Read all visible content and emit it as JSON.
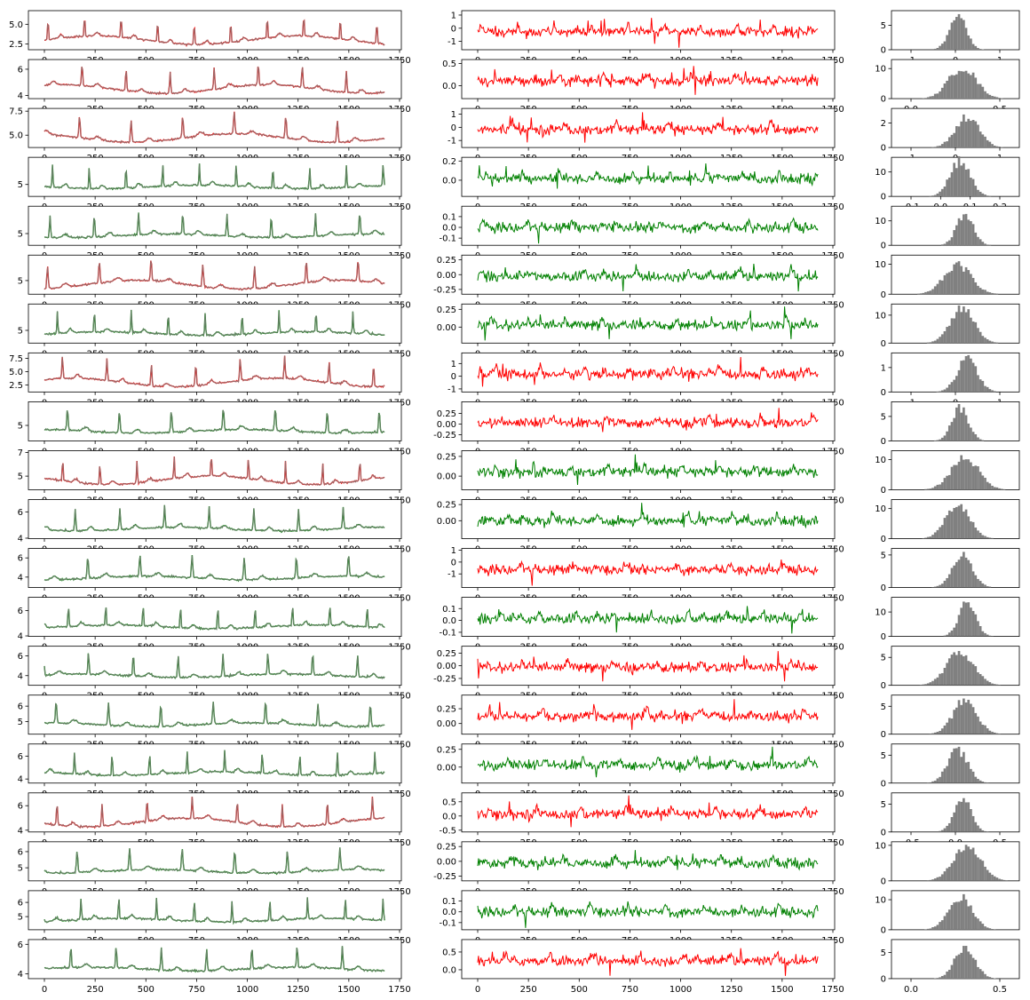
{
  "chart_data": {
    "type": "grid-of-plots",
    "rows": 20,
    "columns": [
      "signal_with_reconstruction",
      "residual",
      "residual_histogram"
    ],
    "colors": {
      "red": "#ff0000",
      "green": "#008000",
      "overlay": "#808080",
      "hist": "#808080"
    },
    "x_range_signal": [
      0,
      1680
    ],
    "x_ticks_signal": [
      0,
      250,
      500,
      750,
      1000,
      1250,
      1500,
      1750
    ],
    "x_tick_labels_signal": [
      "0",
      "250",
      "500",
      "750",
      "1000",
      "1250",
      "1500",
      "1750"
    ],
    "row_status": [
      "red",
      "red",
      "red",
      "green",
      "green",
      "red",
      "green",
      "red",
      "green",
      "red",
      "green",
      "green",
      "green",
      "green",
      "green",
      "green",
      "red",
      "green",
      "green",
      "green"
    ],
    "residual_color": [
      "red",
      "red",
      "red",
      "green",
      "green",
      "green",
      "green",
      "red",
      "red",
      "green",
      "green",
      "red",
      "green",
      "red",
      "red",
      "green",
      "red",
      "green",
      "green",
      "red"
    ],
    "signal_yticks": [
      [
        "2.5",
        "5.0"
      ],
      [
        "4",
        "6"
      ],
      [
        "5.0",
        "7.5"
      ],
      [
        "5"
      ],
      [
        "5"
      ],
      [
        "5"
      ],
      [
        "5"
      ],
      [
        "2.5",
        "5.0",
        "7.5"
      ],
      [
        "5"
      ],
      [
        "5",
        "7"
      ],
      [
        "4",
        "6"
      ],
      [
        "4",
        "6"
      ],
      [
        "4",
        "6"
      ],
      [
        "4",
        "6"
      ],
      [
        "5",
        "6"
      ],
      [
        "4",
        "6"
      ],
      [
        "4",
        "6"
      ],
      [
        "5",
        "6"
      ],
      [
        "5",
        "6"
      ],
      [
        "4",
        "6"
      ]
    ],
    "signal_ylims": [
      [
        2,
        6.5
      ],
      [
        3.9,
        6.6
      ],
      [
        3.9,
        7.6
      ],
      [
        4.2,
        7
      ],
      [
        4.3,
        6.8
      ],
      [
        4.2,
        6.6
      ],
      [
        4.2,
        6.8
      ],
      [
        1.5,
        8.2
      ],
      [
        4,
        6.6
      ],
      [
        4,
        7
      ],
      [
        4.1,
        6.8
      ],
      [
        3.1,
        6.8
      ],
      [
        4.1,
        6.9
      ],
      [
        3.2,
        6.8
      ],
      [
        4.3,
        6.6
      ],
      [
        3.8,
        6.9
      ],
      [
        4,
        6.9
      ],
      [
        4.3,
        6.5
      ],
      [
        4.2,
        6.7
      ],
      [
        3.8,
        6.2
      ]
    ],
    "residual_yticks": [
      [
        "-1",
        "0",
        "1"
      ],
      [
        "0.0",
        "0.5"
      ],
      [
        "-1",
        "0",
        "1"
      ],
      [
        "0.0",
        "0.2"
      ],
      [
        "-0.1",
        "0.0",
        "0.1"
      ],
      [
        "-0.25",
        "0.00",
        "0.25"
      ],
      [
        "0.00",
        "0.25"
      ],
      [
        "-1",
        "0",
        "1"
      ],
      [
        "-0.25",
        "0.00",
        "0.25"
      ],
      [
        "0.00",
        "0.25"
      ],
      [
        "0.00",
        "0.25"
      ],
      [
        "-1",
        "0",
        "1"
      ],
      [
        "-0.1",
        "0.0",
        "0.1"
      ],
      [
        "-0.25",
        "0.00",
        "0.25"
      ],
      [
        "0.00",
        "0.25"
      ],
      [
        "0.00",
        "0.25"
      ],
      [
        "-0.5",
        "0.0",
        "0.5"
      ],
      [
        "-0.25",
        "0.00",
        "0.25"
      ],
      [
        "-0.1",
        "0.0",
        "0.1"
      ],
      [
        "0.0",
        "0.5"
      ]
    ],
    "residual_ylims": [
      [
        -1.5,
        1.2
      ],
      [
        -0.25,
        0.55
      ],
      [
        -1.4,
        1.3
      ],
      [
        -0.15,
        0.22
      ],
      [
        -0.15,
        0.18
      ],
      [
        -0.3,
        0.3
      ],
      [
        -0.2,
        0.3
      ],
      [
        -1.1,
        1.7
      ],
      [
        -0.35,
        0.48
      ],
      [
        -0.15,
        0.3
      ],
      [
        -0.25,
        0.3
      ],
      [
        -2,
        1
      ],
      [
        -0.12,
        0.18
      ],
      [
        -0.35,
        0.35
      ],
      [
        -0.15,
        0.45
      ],
      [
        -0.2,
        0.3
      ],
      [
        -0.5,
        0.75
      ],
      [
        -0.3,
        0.3
      ],
      [
        -0.15,
        0.18
      ],
      [
        -0.2,
        0.8
      ]
    ],
    "hist_yticks": [
      [
        "0",
        "5"
      ],
      [
        "0",
        "10"
      ],
      [
        "0",
        "2"
      ],
      [
        "0",
        "10"
      ],
      [
        "0",
        "10"
      ],
      [
        "0",
        "10"
      ],
      [
        "0",
        "10"
      ],
      [
        "0",
        "1"
      ],
      [
        "0",
        "5"
      ],
      [
        "0",
        "10"
      ],
      [
        "0",
        "10"
      ],
      [
        "0",
        "5"
      ],
      [
        "0",
        "10"
      ],
      [
        "0",
        "5"
      ],
      [
        "0",
        "5"
      ],
      [
        "0",
        "5"
      ],
      [
        "0",
        "5"
      ],
      [
        "0",
        "10"
      ],
      [
        "0",
        "10"
      ],
      [
        "0",
        "5"
      ]
    ],
    "hist_ylims": [
      [
        0,
        8
      ],
      [
        0,
        13
      ],
      [
        0,
        3.2
      ],
      [
        0,
        16
      ],
      [
        0,
        16
      ],
      [
        0,
        13
      ],
      [
        0,
        14
      ],
      [
        0,
        1.6
      ],
      [
        0,
        8
      ],
      [
        0,
        13
      ],
      [
        0,
        13
      ],
      [
        0,
        6
      ],
      [
        0,
        16
      ],
      [
        0,
        7
      ],
      [
        0,
        7
      ],
      [
        0,
        7
      ],
      [
        0,
        7
      ],
      [
        0,
        11
      ],
      [
        0,
        13
      ],
      [
        0,
        7.5
      ]
    ],
    "hist_peak_fraction": [
      0.86,
      0.8,
      0.78,
      0.9,
      0.8,
      0.74,
      0.88,
      0.84,
      0.85,
      0.83,
      0.87,
      0.8,
      0.86,
      0.84,
      0.86,
      0.83,
      0.9,
      0.86,
      0.83,
      0.8
    ],
    "hist_xticks": {
      "0": [
        "-1",
        "0",
        "1"
      ],
      "1": [
        "0.0",
        "0.5"
      ],
      "2": [
        "-1",
        "0",
        "1"
      ],
      "3": [
        "-0.1",
        "0.0",
        "0.1",
        "0.2"
      ],
      "7": [
        "-1",
        "0",
        "1"
      ],
      "16": [
        "-0.5",
        "0.0",
        "0.5"
      ],
      "19": [
        "0.0",
        "0.5"
      ]
    }
  }
}
